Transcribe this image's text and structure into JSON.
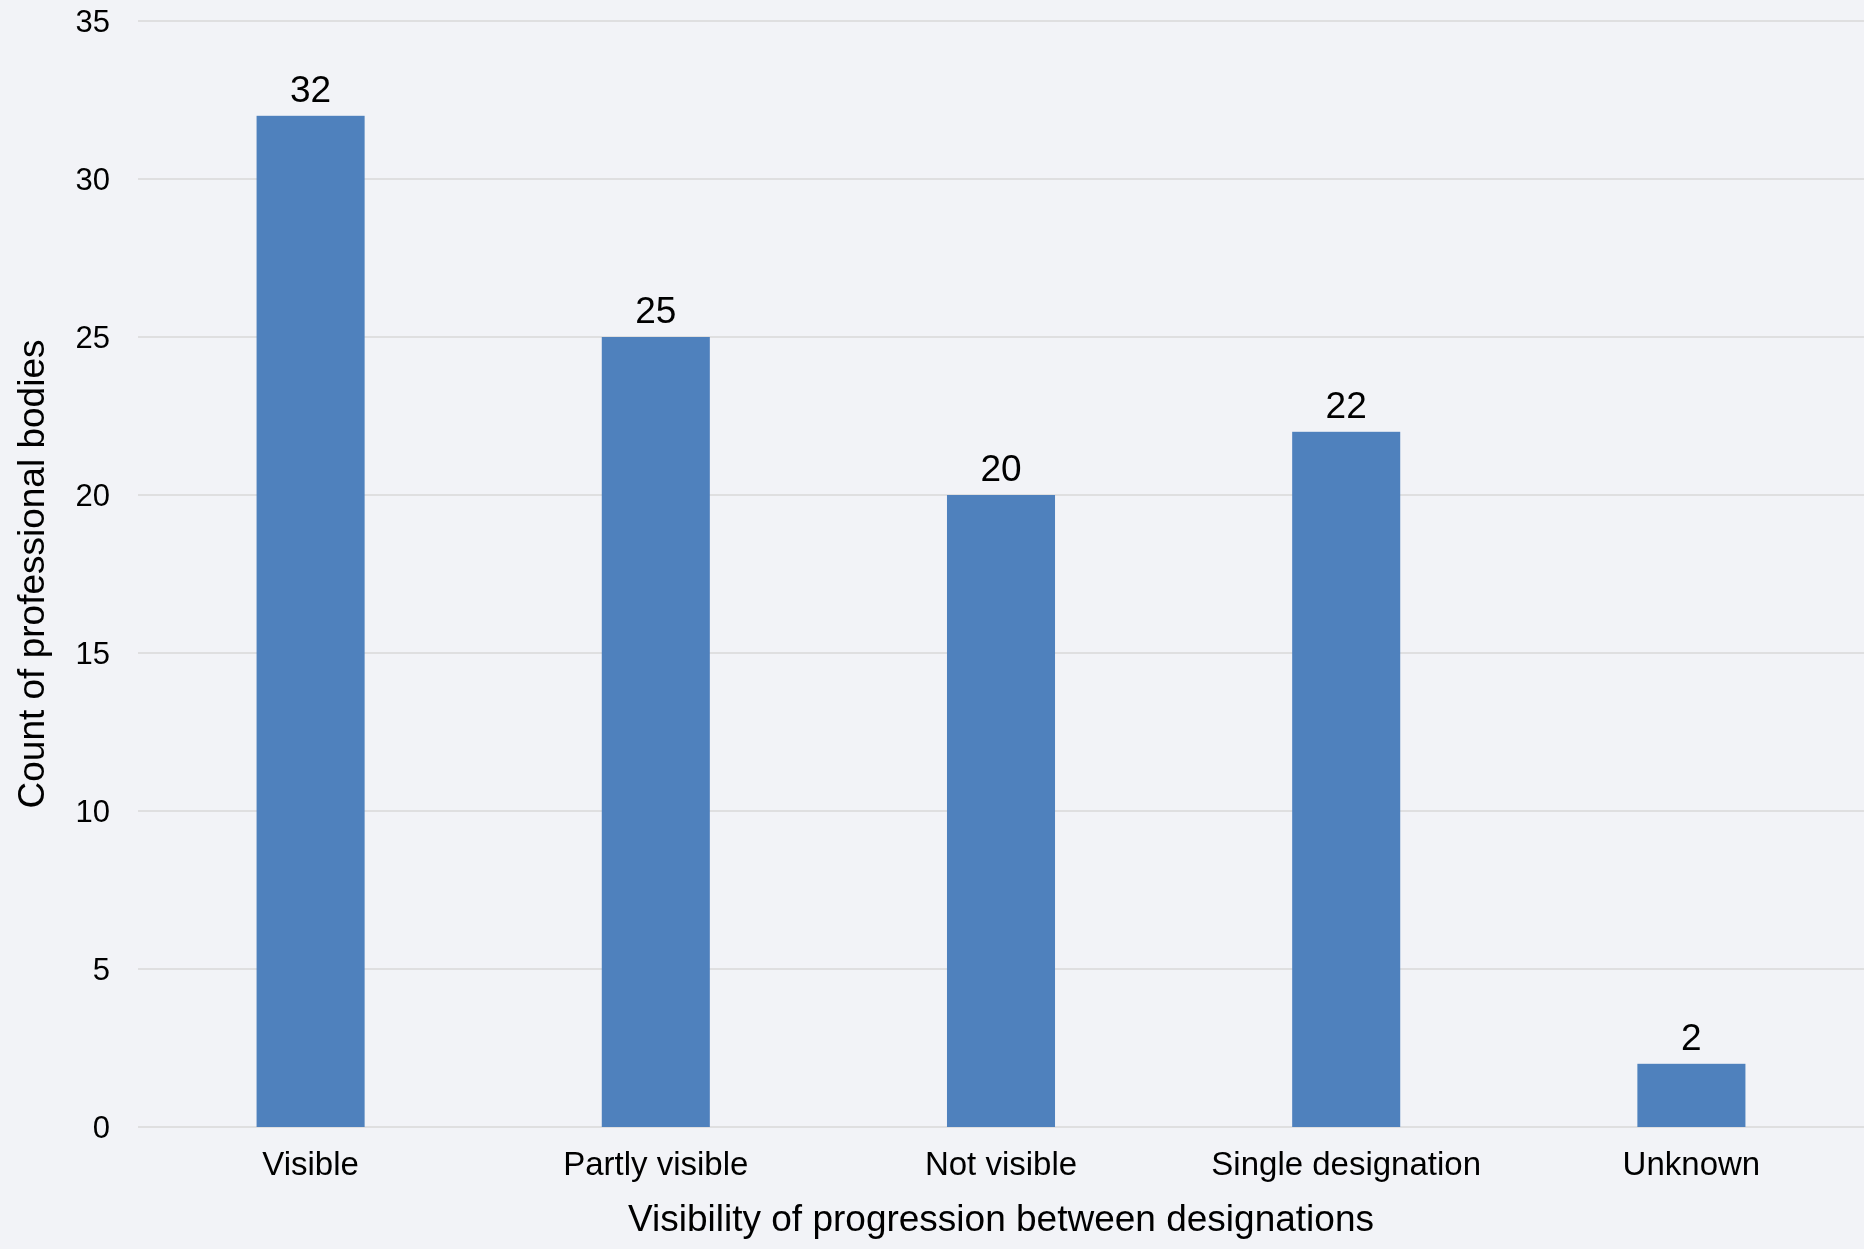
{
  "chart_data": {
    "type": "bar",
    "xlabel": "Visibility of progression between designations",
    "ylabel": "Count of professional bodies",
    "categories": [
      "Visible",
      "Partly visible",
      "Not visible",
      "Single designation",
      "Unknown"
    ],
    "values": [
      32,
      25,
      20,
      22,
      2
    ],
    "color": "#4f81bd",
    "ylim": [
      0,
      35
    ],
    "yticks": [
      0,
      5,
      10,
      15,
      20,
      25,
      30,
      35
    ],
    "grid": "y",
    "data_labels": true
  }
}
